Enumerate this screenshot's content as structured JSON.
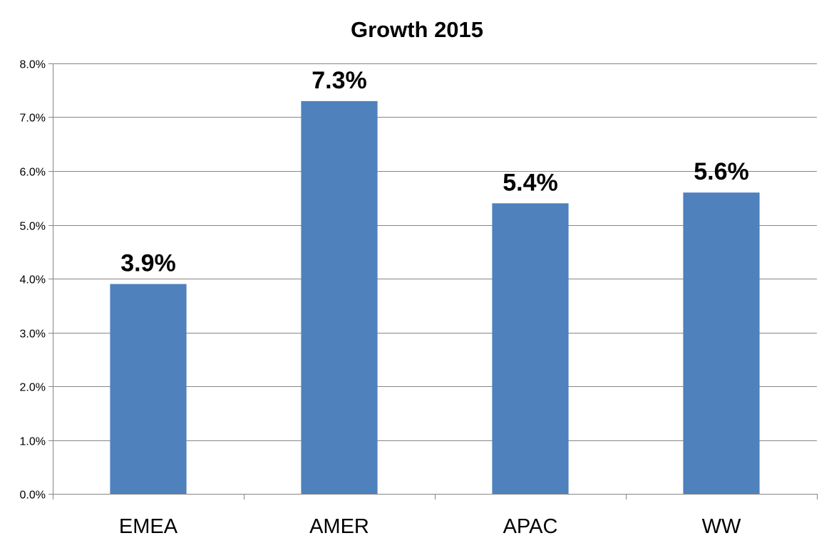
{
  "chart_data": {
    "type": "bar",
    "title": "Growth 2015",
    "xlabel": "",
    "ylabel": "",
    "categories": [
      "EMEA",
      "AMER",
      "APAC",
      "WW"
    ],
    "values": [
      0.039,
      0.073,
      0.054,
      0.056
    ],
    "data_labels": [
      "3.9%",
      "7.3%",
      "5.4%",
      "5.6%"
    ],
    "ylim": [
      0,
      0.08
    ],
    "yticks": [
      0,
      0.01,
      0.02,
      0.03,
      0.04,
      0.05,
      0.06,
      0.07,
      0.08
    ],
    "ytick_labels": [
      "0.0%",
      "1.0%",
      "2.0%",
      "3.0%",
      "4.0%",
      "5.0%",
      "6.0%",
      "7.0%",
      "8.0%"
    ],
    "grid": true,
    "legend": "none",
    "bar_color": "#4f81bd",
    "grid_color": "#868686"
  }
}
